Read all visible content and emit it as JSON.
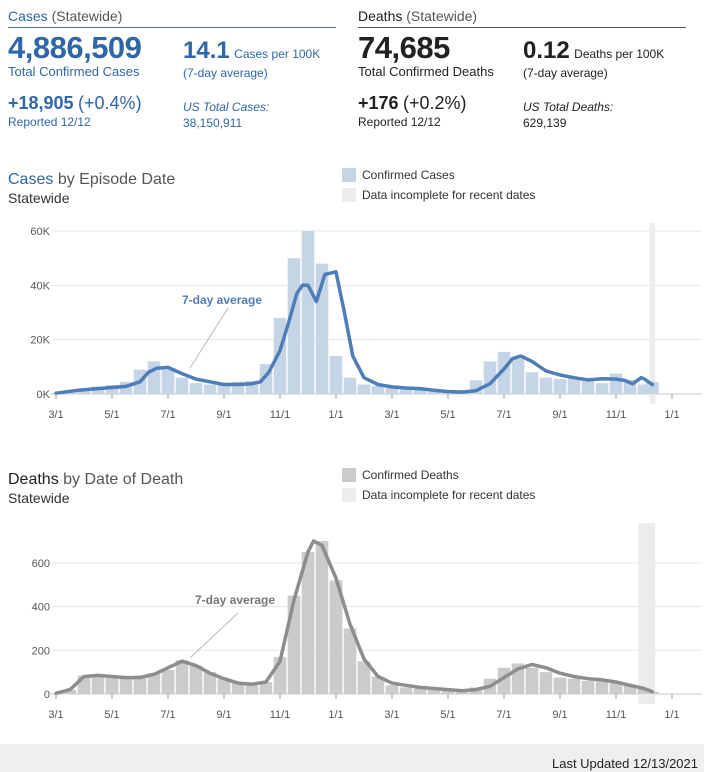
{
  "cases_panel": {
    "title": "Cases",
    "title_sub": "(Statewide)",
    "total": "4,886,509",
    "total_label": "Total Confirmed Cases",
    "rate": "14.1",
    "rate_label": "Cases per 100K",
    "rate_sub": "(7-day average)",
    "new_count": "+18,905",
    "new_pct": "(+0.4%)",
    "reported": "Reported 12/12",
    "us_label": "US Total Cases:",
    "us_value": "38,150,911"
  },
  "deaths_panel": {
    "title": "Deaths",
    "title_sub": "(Statewide)",
    "total": "74,685",
    "total_label": "Total Confirmed Deaths",
    "rate": "0.12",
    "rate_label": "Deaths per 100K",
    "rate_sub": "(7-day average)",
    "new_count": "+176",
    "new_pct": "(+0.2%)",
    "reported": "Reported 12/12",
    "us_label": "US Total Deaths:",
    "us_value": "629,139"
  },
  "cases_chart": {
    "title_bold": "Cases",
    "title_rest": "by Episode Date",
    "subtitle": "Statewide",
    "legend_bar": "Confirmed Cases",
    "legend_incomplete": "Data incomplete for recent dates",
    "avg_label": "7-day average"
  },
  "deaths_chart": {
    "title_bold": "Deaths",
    "title_rest": "by Date of Death",
    "subtitle": "Statewide",
    "legend_bar": "Confirmed Deaths",
    "legend_incomplete": "Data incomplete for recent dates",
    "avg_label": "7-day average"
  },
  "colors": {
    "cases_accent": "#2f66a8",
    "cases_bar": "#c5d5e6",
    "cases_line": "#4f7db8",
    "deaths_bar": "#cbcbcb",
    "deaths_line": "#8d8d8d",
    "incomplete": "#ececec"
  },
  "chart_data": [
    {
      "type": "bar",
      "title": "Cases by Episode Date",
      "subtitle": "Statewide",
      "x_tick_labels": [
        "3/1",
        "5/1",
        "7/1",
        "9/1",
        "11/1",
        "1/1",
        "3/1",
        "5/1",
        "7/1",
        "9/1",
        "11/1",
        "1/1"
      ],
      "y_tick_labels": [
        "0K",
        "20K",
        "40K",
        "60K"
      ],
      "ylim": [
        0,
        60000
      ],
      "xlim_months": [
        0,
        22
      ],
      "incomplete_range_months": [
        21.2,
        21.4
      ],
      "grid": true,
      "legend_position": "top-right",
      "series": [
        {
          "name": "Confirmed Cases",
          "type": "bar",
          "x_months": [
            0,
            0.5,
            1,
            1.5,
            2,
            2.5,
            3,
            3.5,
            4,
            4.5,
            5,
            5.5,
            6,
            6.5,
            7,
            7.5,
            8,
            8.5,
            9,
            9.5,
            10,
            10.5,
            11,
            11.5,
            12,
            12.5,
            13,
            13.5,
            14,
            14.5,
            15,
            15.5,
            16,
            16.5,
            17,
            17.5,
            18,
            18.5,
            19,
            19.5,
            20,
            20.5,
            21,
            21.3
          ],
          "values": [
            300,
            1200,
            2200,
            2800,
            3300,
            4500,
            9000,
            12000,
            9000,
            6000,
            4000,
            3500,
            4000,
            4500,
            4800,
            11000,
            28000,
            50000,
            60000,
            48000,
            14000,
            6000,
            3500,
            3000,
            2800,
            2500,
            1500,
            900,
            700,
            1500,
            5000,
            12000,
            15500,
            13000,
            8000,
            6000,
            5500,
            5800,
            5500,
            4000,
            7500,
            5200,
            3500,
            4500
          ]
        },
        {
          "name": "7-day average",
          "type": "line",
          "x_months": [
            0,
            0.5,
            1,
            1.5,
            2,
            2.5,
            3,
            3.3,
            3.6,
            4,
            4.5,
            5,
            5.5,
            6,
            6.5,
            7,
            7.3,
            7.6,
            8,
            8.3,
            8.6,
            8.8,
            9,
            9.3,
            9.6,
            10,
            10.3,
            10.6,
            11,
            11.5,
            12,
            12.5,
            13,
            13.5,
            14,
            14.5,
            15,
            15.5,
            16,
            16.3,
            16.6,
            17,
            17.5,
            18,
            18.5,
            19,
            19.5,
            20,
            20.3,
            20.6,
            20.9,
            21.0,
            21.3
          ],
          "values": [
            300,
            1000,
            1600,
            2000,
            2400,
            2800,
            4500,
            8000,
            9500,
            9800,
            7500,
            5500,
            4500,
            3500,
            3500,
            3800,
            4500,
            8000,
            16000,
            26000,
            37000,
            40000,
            40000,
            34000,
            44000,
            45000,
            30000,
            14000,
            6000,
            3500,
            2600,
            2200,
            2000,
            1400,
            900,
            700,
            1200,
            3800,
            9200,
            13000,
            14000,
            12000,
            8500,
            7000,
            6000,
            5200,
            5600,
            5500,
            5000,
            3800,
            6000,
            5600,
            3500
          ]
        }
      ]
    },
    {
      "type": "bar",
      "title": "Deaths by Date of Death",
      "subtitle": "Statewide",
      "x_tick_labels": [
        "3/1",
        "5/1",
        "7/1",
        "9/1",
        "11/1",
        "1/1",
        "3/1",
        "5/1",
        "7/1",
        "9/1",
        "11/1",
        "1/1"
      ],
      "y_tick_labels": [
        "0",
        "200",
        "400",
        "600"
      ],
      "ylim": [
        0,
        700
      ],
      "xlim_months": [
        0,
        22
      ],
      "incomplete_range_months": [
        20.8,
        21.4
      ],
      "grid": true,
      "legend_position": "top-right",
      "series": [
        {
          "name": "Confirmed Deaths",
          "type": "bar",
          "x_months": [
            0,
            0.5,
            1,
            1.5,
            2,
            2.5,
            3,
            3.5,
            4,
            4.5,
            5,
            5.5,
            6,
            6.5,
            7,
            7.5,
            8,
            8.5,
            9,
            9.5,
            10,
            10.5,
            11,
            11.5,
            12,
            12.5,
            13,
            13.5,
            14,
            14.5,
            15,
            15.5,
            16,
            16.5,
            17,
            17.5,
            18,
            18.5,
            19,
            19.5,
            20,
            20.5,
            21,
            21.3
          ],
          "values": [
            3,
            20,
            85,
            90,
            80,
            70,
            85,
            95,
            110,
            155,
            130,
            100,
            70,
            50,
            45,
            55,
            170,
            450,
            650,
            700,
            520,
            300,
            150,
            80,
            40,
            30,
            25,
            20,
            15,
            20,
            30,
            70,
            120,
            140,
            120,
            100,
            75,
            70,
            60,
            65,
            55,
            40,
            25,
            10
          ]
        },
        {
          "name": "7-day average",
          "type": "line",
          "x_months": [
            0,
            0.5,
            1,
            1.5,
            2,
            2.5,
            3,
            3.5,
            4,
            4.5,
            5,
            5.5,
            6,
            6.5,
            7,
            7.5,
            8,
            8.5,
            9,
            9.2,
            9.5,
            10,
            10.5,
            11,
            11.5,
            12,
            12.5,
            13,
            13.5,
            14,
            14.5,
            15,
            15.5,
            16,
            16.5,
            17,
            17.5,
            18,
            18.5,
            19,
            19.5,
            20,
            20.5,
            21,
            21.3
          ],
          "values": [
            3,
            20,
            80,
            85,
            80,
            75,
            75,
            90,
            120,
            150,
            130,
            95,
            70,
            50,
            45,
            55,
            150,
            430,
            650,
            700,
            680,
            530,
            320,
            160,
            80,
            50,
            40,
            30,
            25,
            20,
            15,
            20,
            35,
            75,
            115,
            135,
            120,
            95,
            80,
            70,
            65,
            55,
            40,
            25,
            10
          ]
        }
      ]
    }
  ]
}
